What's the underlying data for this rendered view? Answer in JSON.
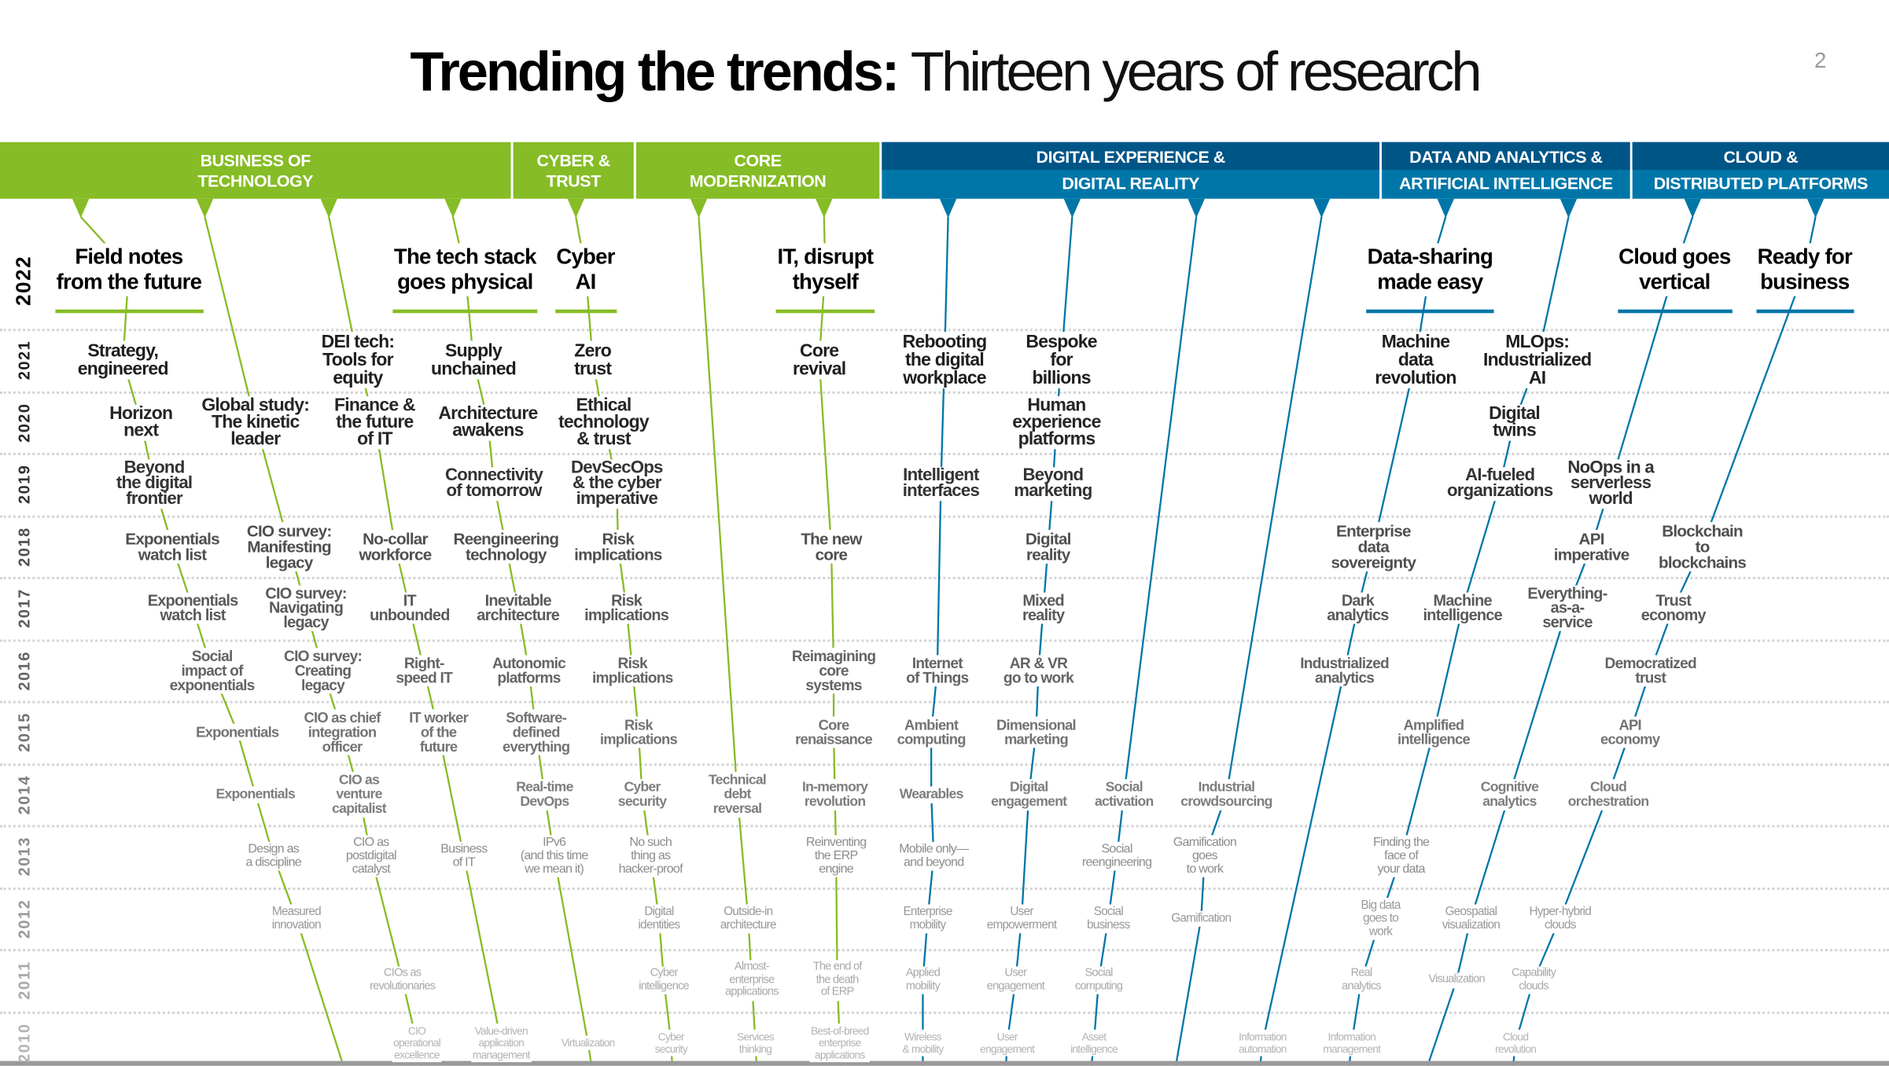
{
  "title": {
    "bold": "Trending the trends:",
    "light": "Thirteen years of research"
  },
  "page_number": "2",
  "colors": {
    "green": "#86bc25",
    "blue_dark": "#005587",
    "blue": "#0076a8"
  },
  "categories": [
    {
      "line1": "BUSINESS OF",
      "line2": "TECHNOLOGY"
    },
    {
      "line1": "CYBER &",
      "line2": "TRUST"
    },
    {
      "line1": "CORE",
      "line2": "MODERNIZATION"
    },
    {
      "line1": "DIGITAL EXPERIENCE &",
      "line2": "DIGITAL REALITY"
    },
    {
      "line1": "DATA AND ANALYTICS &",
      "line2": "ARTIFICIAL INTELLIGENCE"
    },
    {
      "line1": "CLOUD &",
      "line2": "DISTRIBUTED PLATFORMS"
    }
  ],
  "years": [
    "2022",
    "2021",
    "2020",
    "2019",
    "2018",
    "2017",
    "2016",
    "2015",
    "2014",
    "2013",
    "2012",
    "2011",
    "2010"
  ],
  "threads": [
    {
      "color": "green",
      "items": [
        {
          "year": 2022,
          "text": "Field notes\nfrom the future"
        },
        {
          "year": 2021,
          "text": "Strategy,\nengineered"
        },
        {
          "year": 2020,
          "text": "Horizon\nnext"
        },
        {
          "year": 2019,
          "text": "Beyond\nthe digital\nfrontier"
        },
        {
          "year": 2018,
          "text": "Exponentials\nwatch list"
        },
        {
          "year": 2017,
          "text": "Exponentials\nwatch list"
        },
        {
          "year": 2016,
          "text": "Social\nimpact of\nexponentials"
        },
        {
          "year": 2015,
          "text": "Exponentials"
        },
        {
          "year": 2014,
          "text": "Exponentials"
        },
        {
          "year": 2013,
          "text": "Design as\na discipline"
        },
        {
          "year": 2012,
          "text": "Measured\ninnovation"
        }
      ]
    },
    {
      "color": "green",
      "items": [
        {
          "year": 2020,
          "text": "Global study:\nThe kinetic\nleader"
        },
        {
          "year": 2018,
          "text": "CIO survey:\nManifesting\nlegacy"
        },
        {
          "year": 2017,
          "text": "CIO survey:\nNavigating\nlegacy"
        },
        {
          "year": 2016,
          "text": "CIO survey:\nCreating\nlegacy"
        },
        {
          "year": 2015,
          "text": "CIO as chief\nintegration\nofficer"
        },
        {
          "year": 2014,
          "text": "CIO as\nventure\ncapitalist"
        },
        {
          "year": 2013,
          "text": "CIO as\npostdigital\ncatalyst"
        },
        {
          "year": 2011,
          "text": "CIOs as\nrevolutionaries"
        },
        {
          "year": 2010,
          "text": "CIO\noperational\nexcellence"
        }
      ]
    },
    {
      "color": "green",
      "items": [
        {
          "year": 2021,
          "text": "DEI tech:\nTools for\nequity"
        },
        {
          "year": 2020,
          "text": "Finance &\nthe future\nof IT"
        },
        {
          "year": 2018,
          "text": "No-collar\nworkforce"
        },
        {
          "year": 2017,
          "text": "IT\nunbounded"
        },
        {
          "year": 2016,
          "text": "Right-\nspeed IT"
        },
        {
          "year": 2015,
          "text": "IT worker\nof the\nfuture"
        },
        {
          "year": 2013,
          "text": "Business\nof IT"
        },
        {
          "year": 2010,
          "text": "Value-driven\napplication\nmanagement"
        }
      ]
    },
    {
      "color": "green",
      "items": [
        {
          "year": 2022,
          "text": "The tech stack\ngoes physical"
        },
        {
          "year": 2021,
          "text": "Supply\nunchained"
        },
        {
          "year": 2020,
          "text": "Architecture\nawakens"
        },
        {
          "year": 2019,
          "text": "Connectivity\nof tomorrow"
        },
        {
          "year": 2018,
          "text": "Reengineering\ntechnology"
        },
        {
          "year": 2017,
          "text": "Inevitable\narchitecture"
        },
        {
          "year": 2016,
          "text": "Autonomic\nplatforms"
        },
        {
          "year": 2015,
          "text": "Software-\ndefined\neverything"
        },
        {
          "year": 2014,
          "text": "Real-time\nDevOps"
        },
        {
          "year": 2013,
          "text": "IPv6\n(and this time\nwe mean it)"
        },
        {
          "year": 2010,
          "text": "Virtualization"
        }
      ]
    },
    {
      "color": "green",
      "items": [
        {
          "year": 2022,
          "text": "Cyber\nAI"
        },
        {
          "year": 2021,
          "text": "Zero\ntrust"
        },
        {
          "year": 2020,
          "text": "Ethical\ntechnology\n& trust"
        },
        {
          "year": 2019,
          "text": "DevSecOps\n& the cyber\nimperative"
        },
        {
          "year": 2018,
          "text": "Risk\nimplications"
        },
        {
          "year": 2017,
          "text": "Risk\nimplications"
        },
        {
          "year": 2016,
          "text": "Risk\nimplications"
        },
        {
          "year": 2015,
          "text": "Risk\nimplications"
        },
        {
          "year": 2014,
          "text": "Cyber\nsecurity"
        },
        {
          "year": 2013,
          "text": "No such\nthing as\nhacker-proof"
        },
        {
          "year": 2012,
          "text": "Digital\nidentities"
        },
        {
          "year": 2011,
          "text": "Cyber\nintelligence"
        },
        {
          "year": 2010,
          "text": "Cyber\nsecurity"
        }
      ]
    },
    {
      "color": "green",
      "items": [
        {
          "year": 2014,
          "text": "Technical\ndebt\nreversal"
        },
        {
          "year": 2012,
          "text": "Outside-in\narchitecture"
        },
        {
          "year": 2011,
          "text": "Almost-\nenterprise\napplications"
        },
        {
          "year": 2010,
          "text": "Services\nthinking"
        }
      ]
    },
    {
      "color": "green",
      "items": [
        {
          "year": 2022,
          "text": "IT, disrupt\nthyself"
        },
        {
          "year": 2021,
          "text": "Core\nrevival"
        },
        {
          "year": 2018,
          "text": "The new\ncore"
        },
        {
          "year": 2016,
          "text": "Reimagining\ncore\nsystems"
        },
        {
          "year": 2015,
          "text": "Core\nrenaissance"
        },
        {
          "year": 2014,
          "text": "In-memory\nrevolution"
        },
        {
          "year": 2013,
          "text": "Reinventing\nthe ERP\nengine"
        },
        {
          "year": 2011,
          "text": "The end of\nthe death\nof ERP"
        },
        {
          "year": 2010,
          "text": "Best-of-breed\nenterprise\napplications"
        }
      ]
    },
    {
      "color": "blue",
      "items": [
        {
          "year": 2021,
          "text": "Rebooting\nthe digital\nworkplace"
        },
        {
          "year": 2019,
          "text": "Intelligent\ninterfaces"
        },
        {
          "year": 2016,
          "text": "Internet\nof Things"
        },
        {
          "year": 2015,
          "text": "Ambient\ncomputing"
        },
        {
          "year": 2014,
          "text": "Wearables"
        },
        {
          "year": 2013,
          "text": "Mobile only—\nand beyond"
        },
        {
          "year": 2012,
          "text": "Enterprise\nmobility"
        },
        {
          "year": 2011,
          "text": "Applied\nmobility"
        },
        {
          "year": 2010,
          "text": "Wireless\n& mobility"
        }
      ]
    },
    {
      "color": "blue",
      "items": [
        {
          "year": 2021,
          "text": "Bespoke\nfor\nbillions"
        },
        {
          "year": 2020,
          "text": "Human\nexperience\nplatforms"
        },
        {
          "year": 2019,
          "text": "Beyond\nmarketing"
        },
        {
          "year": 2018,
          "text": "Digital\nreality"
        },
        {
          "year": 2017,
          "text": "Mixed\nreality"
        },
        {
          "year": 2016,
          "text": "AR & VR\ngo to work"
        },
        {
          "year": 2015,
          "text": "Dimensional\nmarketing"
        },
        {
          "year": 2014,
          "text": "Digital\nengagement"
        },
        {
          "year": 2012,
          "text": "User\nempowerment"
        },
        {
          "year": 2011,
          "text": "User\nengagement"
        },
        {
          "year": 2010,
          "text": "User\nengagement"
        }
      ]
    },
    {
      "color": "blue",
      "items": [
        {
          "year": 2014,
          "text": "Social\nactivation"
        },
        {
          "year": 2013,
          "text": "Social\nreengineering"
        },
        {
          "year": 2012,
          "text": "Social\nbusiness"
        },
        {
          "year": 2011,
          "text": "Social\ncomputing"
        },
        {
          "year": 2010,
          "text": "Asset\nintelligence"
        }
      ]
    },
    {
      "color": "blue",
      "items": [
        {
          "year": 2014,
          "text": "Industrial\ncrowdsourcing"
        },
        {
          "year": 2013,
          "text": "Gamification\ngoes\nto work"
        },
        {
          "year": 2012,
          "text": "Gamification"
        }
      ]
    },
    {
      "color": "blue",
      "items": [
        {
          "year": 2022,
          "text": "Data-sharing\nmade easy"
        },
        {
          "year": 2021,
          "text": "Machine\ndata\nrevolution"
        },
        {
          "year": 2018,
          "text": "Enterprise\ndata\nsovereignty"
        },
        {
          "year": 2017,
          "text": "Dark\nanalytics"
        },
        {
          "year": 2016,
          "text": "Industrialized\nanalytics"
        },
        {
          "year": 2010,
          "text": "Information\nautomation"
        }
      ]
    },
    {
      "color": "blue",
      "items": [
        {
          "year": 2021,
          "text": "MLOps:\nIndustrialized\nAI"
        },
        {
          "year": 2020,
          "text": "Digital\ntwins"
        },
        {
          "year": 2019,
          "text": "AI-fueled\norganizations"
        },
        {
          "year": 2017,
          "text": "Machine\nintelligence"
        },
        {
          "year": 2015,
          "text": "Amplified\nintelligence"
        },
        {
          "year": 2013,
          "text": "Finding the\nface of\nyour data"
        },
        {
          "year": 2012,
          "text": "Big data\ngoes to\nwork"
        },
        {
          "year": 2011,
          "text": "Real\nanalytics"
        },
        {
          "year": 2010,
          "text": "Information\nmanagement"
        }
      ]
    },
    {
      "color": "blue",
      "items": [
        {
          "year": 2022,
          "text": "Cloud goes\nvertical"
        },
        {
          "year": 2019,
          "text": "NoOps in a\nserverless\nworld"
        },
        {
          "year": 2018,
          "text": "API\nimperative"
        },
        {
          "year": 2017,
          "text": "Everything-\nas-a-\nservice"
        },
        {
          "year": 2014,
          "text": "Cognitive\nanalytics"
        },
        {
          "year": 2012,
          "text": "Geospatial\nvisualization"
        },
        {
          "year": 2011,
          "text": "Visualization"
        }
      ]
    },
    {
      "color": "blue",
      "items": [
        {
          "year": 2022,
          "text": "Ready for\nbusiness"
        },
        {
          "year": 2018,
          "text": "Blockchain\nto\nblockchains"
        },
        {
          "year": 2017,
          "text": "Trust\neconomy"
        },
        {
          "year": 2016,
          "text": "Democratized\ntrust"
        },
        {
          "year": 2015,
          "text": "API\neconomy"
        },
        {
          "year": 2014,
          "text": "Cloud\norchestration"
        },
        {
          "year": 2012,
          "text": "Hyper-hybrid\nclouds"
        },
        {
          "year": 2011,
          "text": "Capability\nclouds"
        },
        {
          "year": 2010,
          "text": "Cloud\nrevolution"
        }
      ]
    }
  ]
}
